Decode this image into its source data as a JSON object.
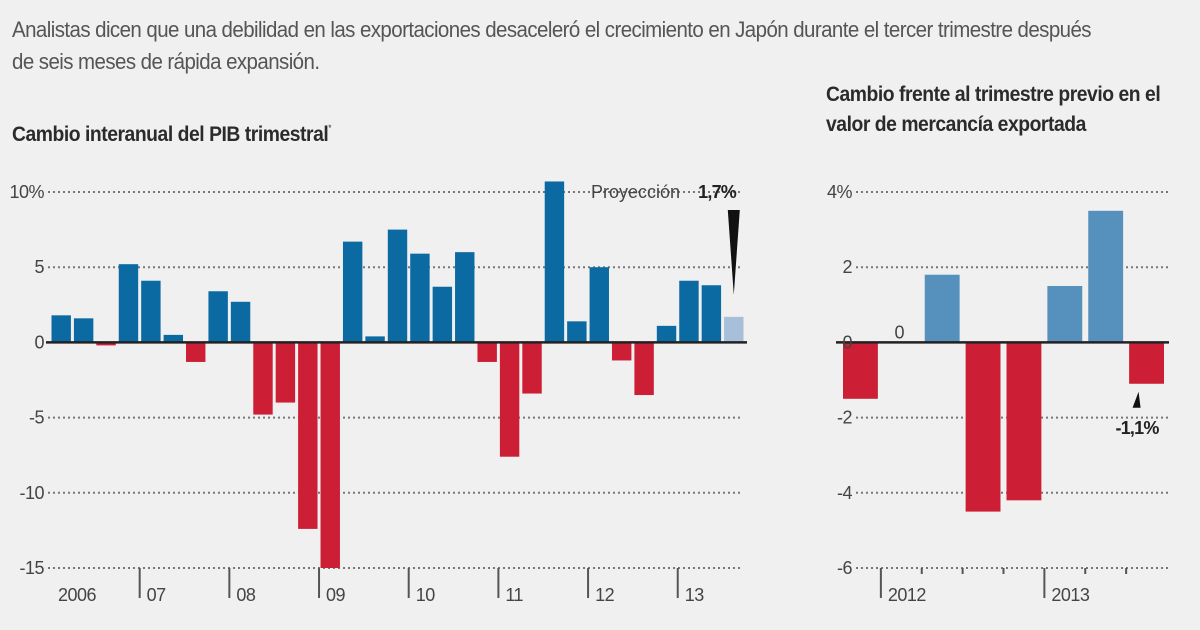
{
  "lede": "Analistas dicen que una debilidad en las exportaciones desaceleró el crecimiento en Japón durante el tercer trimestre después de seis meses de rápida expansión.",
  "colors": {
    "positive": "#0b6aa2",
    "negative": "#cc1f36",
    "projection": "#a7bfd8",
    "positive_right": "#5691bd",
    "background": "#f0f0f0",
    "axis": "#222222",
    "grid": "#777777"
  },
  "chart_data": [
    {
      "type": "bar",
      "title": "Cambio interanual del PIB trimestral",
      "title_footnote_mark": "*",
      "xlabel": "",
      "ylabel": "",
      "ylim": [
        -15,
        10
      ],
      "yticks": [
        10,
        5,
        0,
        -5,
        -10,
        -15
      ],
      "ytick_labels": [
        "10%",
        "5",
        "0",
        "-5",
        "-10",
        "-15"
      ],
      "grid": true,
      "x_groups": [
        {
          "label": "2006",
          "quarters": 4
        },
        {
          "label": "07",
          "quarters": 4
        },
        {
          "label": "08",
          "quarters": 4
        },
        {
          "label": "09",
          "quarters": 4
        },
        {
          "label": "10",
          "quarters": 4
        },
        {
          "label": "11",
          "quarters": 4
        },
        {
          "label": "12",
          "quarters": 4
        },
        {
          "label": "13",
          "quarters": 3
        }
      ],
      "categories": [
        "2006 T1",
        "2006 T2",
        "2006 T3",
        "2006 T4",
        "2007 T1",
        "2007 T2",
        "2007 T3",
        "2007 T4",
        "2008 T1",
        "2008 T2",
        "2008 T3",
        "2008 T4",
        "2009 T1",
        "2009 T2",
        "2009 T3",
        "2009 T4",
        "2010 T1",
        "2010 T2",
        "2010 T3",
        "2010 T4",
        "2011 T1",
        "2011 T2",
        "2011 T3",
        "2011 T4",
        "2012 T1",
        "2012 T2",
        "2012 T3",
        "2012 T4",
        "2013 T1",
        "2013 T2",
        "2013 T3"
      ],
      "values": [
        1.8,
        1.6,
        -0.2,
        5.2,
        4.1,
        0.5,
        -1.3,
        3.4,
        2.7,
        -4.8,
        -4.0,
        -12.4,
        -15.0,
        6.7,
        0.4,
        7.5,
        5.9,
        3.7,
        6.0,
        -1.3,
        -7.6,
        -3.4,
        10.7,
        1.4,
        5.0,
        -1.2,
        -3.5,
        1.1,
        4.1,
        3.8,
        1.7
      ],
      "projection_index": 30,
      "annotation": {
        "label": "Proyección",
        "value": "1,7%"
      }
    },
    {
      "type": "bar",
      "title": "Cambio frente al trimestre previo en el valor de mercancía exportada",
      "xlabel": "",
      "ylabel": "",
      "ylim": [
        -6,
        4
      ],
      "yticks": [
        4,
        2,
        0,
        -2,
        -4,
        -6
      ],
      "ytick_labels": [
        "4%",
        "2",
        "0",
        "-2",
        "-4",
        "-6"
      ],
      "grid": true,
      "x_groups": [
        {
          "label": "",
          "quarters": 1
        },
        {
          "label": "2012",
          "quarters": 4
        },
        {
          "label": "2013",
          "quarters": 3
        }
      ],
      "categories": [
        "2011 T4",
        "2012 T1",
        "2012 T2",
        "2012 T3",
        "2012 T4",
        "2013 T1",
        "2013 T2",
        "2013 T3"
      ],
      "values": [
        -1.5,
        0,
        1.8,
        -4.5,
        -4.2,
        1.5,
        3.5,
        -1.1
      ],
      "zero_label": "0",
      "annotation": {
        "value": "-1,1%"
      }
    }
  ]
}
